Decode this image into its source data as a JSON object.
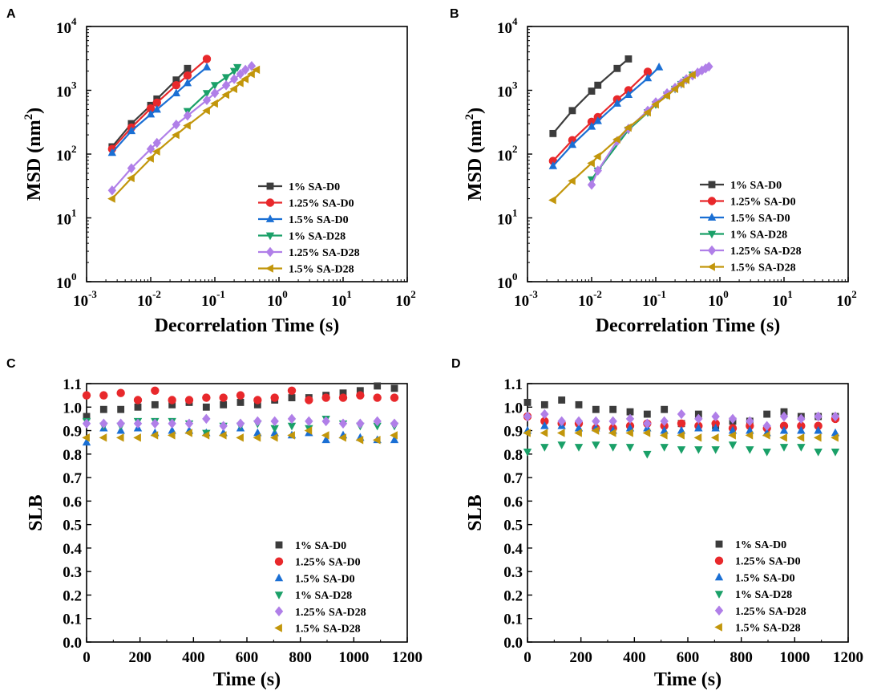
{
  "series_styles": [
    {
      "name": "1% SA-D0",
      "color": "#3c3c3c",
      "marker": "square"
    },
    {
      "name": "1.25% SA-D0",
      "color": "#e8282b",
      "marker": "circle"
    },
    {
      "name": "1.5% SA-D0",
      "color": "#1a6fd4",
      "marker": "triangle-up"
    },
    {
      "name": "1% SA-D28",
      "color": "#1aa068",
      "marker": "triangle-down"
    },
    {
      "name": "1.25% SA-D28",
      "color": "#b07fe8",
      "marker": "diamond"
    },
    {
      "name": "1.5% SA-D28",
      "color": "#c2960b",
      "marker": "triangle-left"
    }
  ],
  "chart_data": [
    {
      "panel": "A",
      "type": "line",
      "scale": "loglog",
      "title": "",
      "xlabel": "Decorrelation Time (s)",
      "ylabel": "MSD (nm",
      "ylabel_sup": "2",
      "ylabel_close": ")",
      "xlim": [
        0.001,
        100
      ],
      "ylim": [
        1,
        10000
      ],
      "x_ticks": [
        {
          "base": "10",
          "exp": "-3",
          "value": 0.001
        },
        {
          "base": "10",
          "exp": "-2",
          "value": 0.01
        },
        {
          "base": "10",
          "exp": "-1",
          "value": 0.1
        },
        {
          "base": "10",
          "exp": "0",
          "value": 1
        },
        {
          "base": "10",
          "exp": "1",
          "value": 10
        },
        {
          "base": "10",
          "exp": "2",
          "value": 100
        }
      ],
      "y_ticks": [
        {
          "base": "10",
          "exp": "0",
          "value": 1
        },
        {
          "base": "10",
          "exp": "1",
          "value": 10
        },
        {
          "base": "10",
          "exp": "2",
          "value": 100
        },
        {
          "base": "10",
          "exp": "3",
          "value": 1000
        },
        {
          "base": "10",
          "exp": "4",
          "value": 10000
        }
      ],
      "legend_position": "bottom-right",
      "series": [
        {
          "name": "1% SA-D0",
          "x": [
            0.0025,
            0.005,
            0.01,
            0.0125,
            0.025,
            0.0375
          ],
          "y": [
            130,
            300,
            580,
            730,
            1450,
            2200
          ]
        },
        {
          "name": "1.25% SA-D0",
          "x": [
            0.0025,
            0.005,
            0.01,
            0.0125,
            0.025,
            0.0375,
            0.075
          ],
          "y": [
            120,
            260,
            520,
            640,
            1200,
            1700,
            3100
          ]
        },
        {
          "name": "1.5% SA-D0",
          "x": [
            0.0025,
            0.005,
            0.01,
            0.0125,
            0.025,
            0.0375,
            0.075
          ],
          "y": [
            105,
            230,
            420,
            500,
            900,
            1300,
            2300
          ]
        },
        {
          "name": "1% SA-D28",
          "x": [
            0.0375,
            0.075,
            0.1,
            0.15,
            0.2,
            0.225
          ],
          "y": [
            470,
            900,
            1200,
            1600,
            2000,
            2300
          ]
        },
        {
          "name": "1.25% SA-D28",
          "x": [
            0.0025,
            0.005,
            0.01,
            0.0125,
            0.025,
            0.0375,
            0.075,
            0.1,
            0.15,
            0.2,
            0.25,
            0.3,
            0.375
          ],
          "y": [
            27,
            60,
            120,
            150,
            290,
            400,
            700,
            900,
            1200,
            1500,
            1800,
            2100,
            2400
          ]
        },
        {
          "name": "1.5% SA-D28",
          "x": [
            0.0025,
            0.005,
            0.01,
            0.0125,
            0.025,
            0.0375,
            0.075,
            0.1,
            0.15,
            0.2,
            0.25,
            0.3,
            0.375,
            0.45
          ],
          "y": [
            20,
            42,
            85,
            110,
            200,
            280,
            480,
            620,
            850,
            1050,
            1300,
            1500,
            1800,
            2100
          ]
        }
      ]
    },
    {
      "panel": "B",
      "type": "line",
      "scale": "loglog",
      "title": "",
      "xlabel": "Decorrelation Time (s)",
      "ylabel": "MSD (nm",
      "ylabel_sup": "2",
      "ylabel_close": ")",
      "xlim": [
        0.001,
        100
      ],
      "ylim": [
        1,
        10000
      ],
      "x_ticks": [
        {
          "base": "10",
          "exp": "-3",
          "value": 0.001
        },
        {
          "base": "10",
          "exp": "-2",
          "value": 0.01
        },
        {
          "base": "10",
          "exp": "-1",
          "value": 0.1
        },
        {
          "base": "10",
          "exp": "0",
          "value": 1
        },
        {
          "base": "10",
          "exp": "1",
          "value": 10
        },
        {
          "base": "10",
          "exp": "2",
          "value": 100
        }
      ],
      "y_ticks": [
        {
          "base": "10",
          "exp": "0",
          "value": 1
        },
        {
          "base": "10",
          "exp": "1",
          "value": 10
        },
        {
          "base": "10",
          "exp": "2",
          "value": 100
        },
        {
          "base": "10",
          "exp": "3",
          "value": 1000
        },
        {
          "base": "10",
          "exp": "4",
          "value": 10000
        }
      ],
      "legend_position": "bottom-right",
      "series": [
        {
          "name": "1% SA-D0",
          "x": [
            0.0025,
            0.005,
            0.01,
            0.0125,
            0.025,
            0.0375
          ],
          "y": [
            210,
            480,
            970,
            1200,
            2200,
            3100
          ]
        },
        {
          "name": "1.25% SA-D0",
          "x": [
            0.0025,
            0.005,
            0.01,
            0.0125,
            0.025,
            0.0375,
            0.075
          ],
          "y": [
            78,
            165,
            320,
            380,
            720,
            1000,
            1950
          ]
        },
        {
          "name": "1.5% SA-D0",
          "x": [
            0.0025,
            0.005,
            0.01,
            0.0125,
            0.025,
            0.0375,
            0.075,
            0.1125
          ],
          "y": [
            65,
            140,
            270,
            330,
            620,
            850,
            1550,
            2300
          ]
        },
        {
          "name": "1% SA-D28",
          "x": [
            0.01,
            0.0125,
            0.0375,
            0.075,
            0.1,
            0.15,
            0.2,
            0.25,
            0.3,
            0.375
          ],
          "y": [
            40,
            55,
            240,
            450,
            600,
            850,
            1050,
            1250,
            1450,
            1750
          ]
        },
        {
          "name": "1.25% SA-D28",
          "x": [
            0.01,
            0.0125,
            0.025,
            0.0375,
            0.075,
            0.1,
            0.15,
            0.2,
            0.25,
            0.3,
            0.375,
            0.45,
            0.525,
            0.6,
            0.675
          ],
          "y": [
            33,
            55,
            160,
            250,
            480,
            650,
            900,
            1100,
            1300,
            1500,
            1700,
            1900,
            2050,
            2200,
            2350
          ]
        },
        {
          "name": "1.5% SA-D28",
          "x": [
            0.0025,
            0.005,
            0.01,
            0.0125,
            0.025,
            0.0375,
            0.075,
            0.1,
            0.15,
            0.2,
            0.25,
            0.3,
            0.375
          ],
          "y": [
            19,
            38,
            72,
            92,
            170,
            260,
            450,
            600,
            820,
            1050,
            1250,
            1450,
            1750
          ]
        }
      ]
    },
    {
      "panel": "C",
      "type": "scatter",
      "scale": "linear",
      "title": "",
      "xlabel": "Time (s)",
      "ylabel": "SLB",
      "xlim": [
        0,
        1200
      ],
      "ylim": [
        0,
        1.1
      ],
      "x_ticks": [
        "0",
        "200",
        "400",
        "600",
        "800",
        "1000",
        "1200"
      ],
      "y_ticks": [
        "0.0",
        "0.1",
        "0.2",
        "0.3",
        "0.4",
        "0.5",
        "0.6",
        "0.7",
        "0.8",
        "0.9",
        "1.0",
        "1.1"
      ],
      "legend_position": "bottom-right",
      "x": [
        0,
        64,
        128,
        192,
        256,
        320,
        384,
        448,
        512,
        576,
        640,
        704,
        768,
        832,
        896,
        960,
        1024,
        1088,
        1152
      ],
      "series": [
        {
          "name": "1% SA-D0",
          "values": [
            0.96,
            0.99,
            0.99,
            1.0,
            1.01,
            1.01,
            1.02,
            1.0,
            1.01,
            1.02,
            1.01,
            1.03,
            1.04,
            1.04,
            1.05,
            1.06,
            1.07,
            1.09,
            1.08
          ]
        },
        {
          "name": "1.25% SA-D0",
          "values": [
            1.05,
            1.05,
            1.06,
            1.03,
            1.07,
            1.03,
            1.03,
            1.04,
            1.04,
            1.05,
            1.03,
            1.04,
            1.07,
            1.03,
            1.04,
            1.04,
            1.05,
            1.04,
            1.04
          ]
        },
        {
          "name": "1.5% SA-D0",
          "values": [
            0.85,
            0.91,
            0.9,
            0.91,
            0.89,
            0.9,
            0.9,
            0.89,
            0.89,
            0.91,
            0.89,
            0.89,
            0.88,
            0.89,
            0.86,
            0.88,
            0.87,
            0.86,
            0.86
          ]
        },
        {
          "name": "1% SA-D28",
          "values": [
            0.94,
            0.92,
            0.92,
            0.94,
            0.94,
            0.94,
            0.93,
            0.89,
            0.92,
            0.92,
            0.93,
            0.91,
            0.92,
            0.91,
            0.95,
            0.93,
            0.92,
            0.92,
            0.92
          ]
        },
        {
          "name": "1.25% SA-D28",
          "values": [
            0.93,
            0.93,
            0.93,
            0.93,
            0.93,
            0.93,
            0.93,
            0.95,
            0.92,
            0.93,
            0.94,
            0.94,
            0.95,
            0.94,
            0.94,
            0.93,
            0.93,
            0.94,
            0.93
          ]
        },
        {
          "name": "1.5% SA-D28",
          "values": [
            0.87,
            0.87,
            0.87,
            0.87,
            0.88,
            0.88,
            0.89,
            0.88,
            0.88,
            0.87,
            0.87,
            0.87,
            0.88,
            0.9,
            0.88,
            0.87,
            0.86,
            0.86,
            0.88
          ]
        }
      ]
    },
    {
      "panel": "D",
      "type": "scatter",
      "scale": "linear",
      "title": "",
      "xlabel": "Time (s)",
      "ylabel": "SLB",
      "xlim": [
        0,
        1200
      ],
      "ylim": [
        0,
        1.1
      ],
      "x_ticks": [
        "0",
        "200",
        "400",
        "600",
        "800",
        "1000",
        "1200"
      ],
      "y_ticks": [
        "0.0",
        "0.1",
        "0.2",
        "0.3",
        "0.4",
        "0.5",
        "0.6",
        "0.7",
        "0.8",
        "0.9",
        "1.0",
        "1.1"
      ],
      "legend_position": "bottom-right",
      "x": [
        0,
        64,
        128,
        192,
        256,
        320,
        384,
        448,
        512,
        576,
        640,
        704,
        768,
        832,
        896,
        960,
        1024,
        1088,
        1152
      ],
      "series": [
        {
          "name": "1% SA-D0",
          "values": [
            1.02,
            1.01,
            1.03,
            1.01,
            0.99,
            0.99,
            0.98,
            0.97,
            0.99,
            0.93,
            0.97,
            0.92,
            0.94,
            0.94,
            0.97,
            0.98,
            0.96,
            0.96,
            0.96
          ]
        },
        {
          "name": "1.25% SA-D0",
          "values": [
            0.96,
            0.94,
            0.93,
            0.93,
            0.91,
            0.91,
            0.92,
            0.93,
            0.92,
            0.93,
            0.92,
            0.93,
            0.91,
            0.92,
            0.91,
            0.92,
            0.92,
            0.92,
            0.95
          ]
        },
        {
          "name": "1.5% SA-D0",
          "values": [
            0.9,
            0.92,
            0.92,
            0.91,
            0.91,
            0.9,
            0.91,
            0.91,
            0.9,
            0.9,
            0.91,
            0.91,
            0.9,
            0.9,
            0.89,
            0.9,
            0.9,
            0.9,
            0.89
          ]
        },
        {
          "name": "1% SA-D28",
          "values": [
            0.81,
            0.83,
            0.84,
            0.83,
            0.84,
            0.83,
            0.83,
            0.8,
            0.83,
            0.82,
            0.82,
            0.82,
            0.84,
            0.82,
            0.81,
            0.83,
            0.83,
            0.81,
            0.81
          ]
        },
        {
          "name": "1.25% SA-D28",
          "values": [
            0.96,
            0.97,
            0.94,
            0.94,
            0.94,
            0.94,
            0.95,
            0.93,
            0.94,
            0.97,
            0.95,
            0.96,
            0.95,
            0.94,
            0.92,
            0.96,
            0.95,
            0.96,
            0.96
          ]
        },
        {
          "name": "1.5% SA-D28",
          "values": [
            0.89,
            0.89,
            0.89,
            0.89,
            0.9,
            0.89,
            0.89,
            0.89,
            0.88,
            0.88,
            0.87,
            0.87,
            0.88,
            0.88,
            0.88,
            0.87,
            0.87,
            0.87,
            0.87
          ]
        }
      ]
    }
  ]
}
